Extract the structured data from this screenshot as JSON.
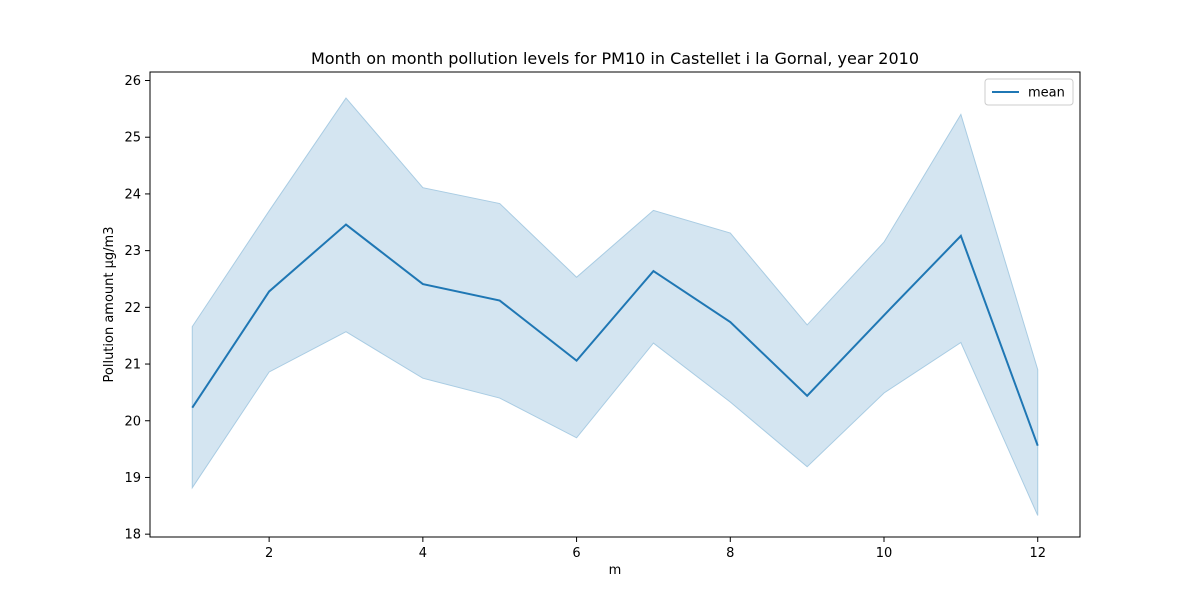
{
  "chart_data": {
    "type": "line",
    "title": "Month on month pollution levels for PM10 in Castellet i la Gornal, year 2010",
    "xlabel": "m",
    "ylabel": "Pollution amount μg/m3",
    "xlim": [
      0.45,
      12.55
    ],
    "ylim": [
      17.95,
      26.15
    ],
    "xticks": [
      2,
      4,
      6,
      8,
      10,
      12
    ],
    "yticks": [
      18,
      19,
      20,
      21,
      22,
      23,
      24,
      25,
      26
    ],
    "grid": false,
    "legend_position": "top-right",
    "x": [
      1,
      2,
      3,
      4,
      5,
      6,
      7,
      8,
      9,
      10,
      11,
      12
    ],
    "series": [
      {
        "name": "mean",
        "color": "#1f77b4",
        "values": [
          20.23,
          22.28,
          23.46,
          22.41,
          22.12,
          21.06,
          22.64,
          21.74,
          20.44,
          21.86,
          23.26,
          19.56
        ],
        "ci_lower": [
          18.82,
          20.86,
          21.57,
          20.75,
          20.4,
          19.7,
          21.37,
          20.33,
          19.19,
          20.49,
          21.38,
          18.33
        ],
        "ci_upper": [
          21.66,
          23.7,
          25.69,
          24.11,
          23.83,
          22.53,
          23.71,
          23.31,
          21.69,
          23.15,
          25.4,
          20.9
        ],
        "band_color": "#a9cce3"
      }
    ]
  }
}
